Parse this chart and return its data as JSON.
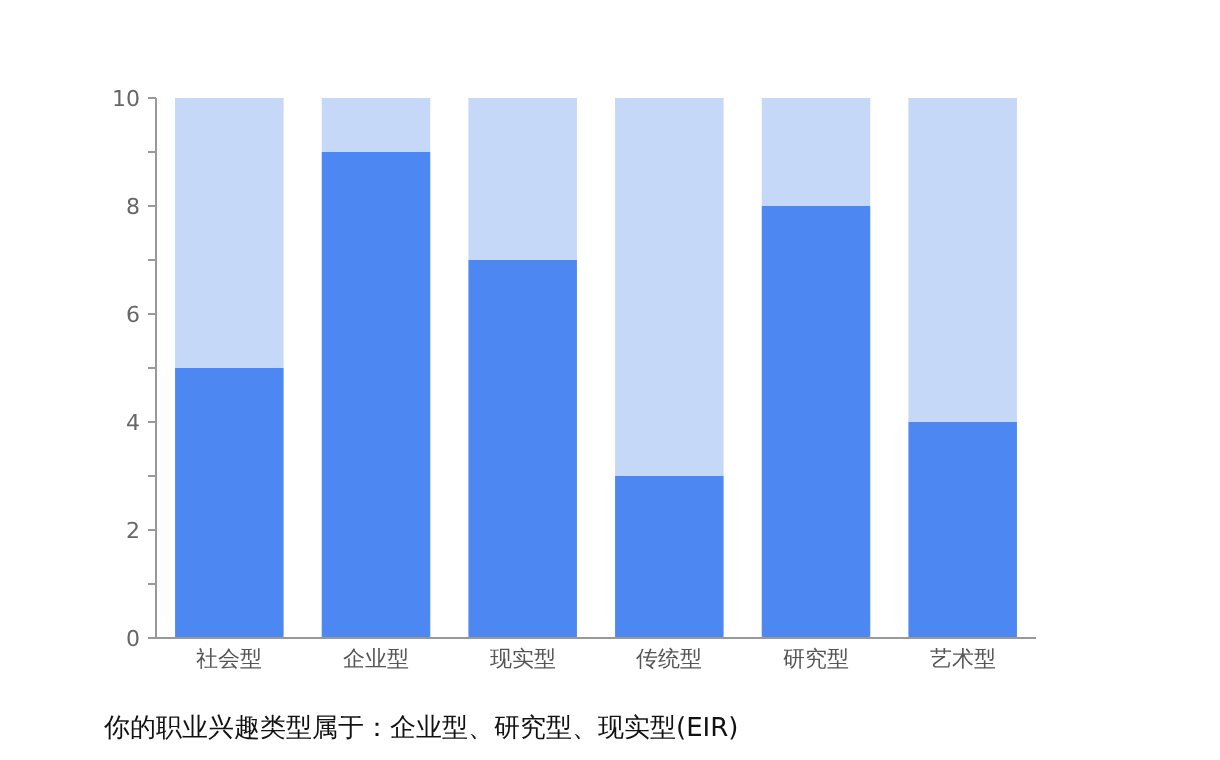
{
  "chart_data": {
    "type": "bar",
    "stacked": true,
    "categories": [
      "社会型",
      "企业型",
      "现实型",
      "传统型",
      "研究型",
      "艺术型"
    ],
    "series": [
      {
        "color": "#4d88f2",
        "values": [
          5,
          9,
          7,
          3,
          8,
          4
        ]
      },
      {
        "color": "#c6d8f8",
        "values": [
          5,
          1,
          3,
          7,
          2,
          6
        ]
      }
    ],
    "ylim": [
      0,
      10
    ],
    "yticks": [
      0,
      {
        "value": 1,
        "label": null
      },
      2,
      {
        "value": 3,
        "label": null
      },
      4,
      {
        "value": 5,
        "label": null
      },
      6,
      {
        "value": 7,
        "label": null
      },
      8,
      {
        "value": 9,
        "label": null
      },
      10
    ],
    "grid": false,
    "annotations": [
      "你的职业兴趣类型属于：企业型、研究型、现实型(EIR)"
    ]
  }
}
